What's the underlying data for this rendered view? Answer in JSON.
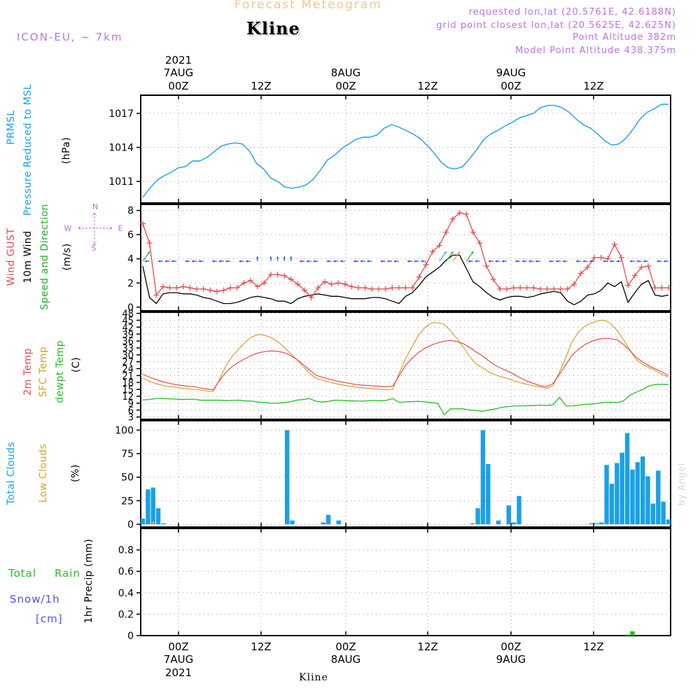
{
  "header": {
    "title": "Forecast Meteogram",
    "station": "Kline",
    "model": "ICON-EU, ~ 7km",
    "requested": "requested lon,lat (20.5761E, 42.6188N)",
    "grid_point": "grid point closest lon,lat (20.5625E, 42.625N)",
    "point_altitude": "Point Altitude 382m",
    "model_altitude": "Model Point Altitude 438.375m"
  },
  "colors": {
    "pressure": "#1aa0e6",
    "gust": "#e84a4a",
    "wind": "#000000",
    "direction": "#20b020",
    "temp2m": "#e84a4a",
    "sfc": "#d6a030",
    "dewpt": "#20c020",
    "total_clouds": "#1aa0e6",
    "low_clouds": "#d6a030",
    "rain": "#20c020",
    "snow": "#5050f0",
    "label_purple": "#c070e0"
  },
  "time_axis": {
    "top_ticks": [
      "00Z",
      "12Z",
      "00Z",
      "12Z",
      "00Z",
      "12Z"
    ],
    "top_dates": [
      "7AUG",
      "8AUG",
      "9AUG"
    ],
    "top_year": "2021",
    "bottom_ticks": [
      "00Z",
      "12Z",
      "00Z",
      "12Z",
      "00Z",
      "12Z"
    ],
    "bottom_dates": [
      "7AUG",
      "8AUG",
      "9AUG"
    ],
    "bottom_year": "2021",
    "footer": "Kline",
    "watermark": "by Angel"
  },
  "chart_data": [
    {
      "type": "line",
      "title": "Pressure Reduced to MSL",
      "series": [
        {
          "name": "PRMSL",
          "values": [
            1009.6,
            1010.4,
            1011.1,
            1011.5,
            1011.8,
            1012.2,
            1012.3,
            1012.8,
            1012.8,
            1013.1,
            1013.6,
            1014.1,
            1014.3,
            1014.4,
            1014.3,
            1013.7,
            1012.6,
            1012.1,
            1011.3,
            1011.0,
            1010.5,
            1010.4,
            1010.5,
            1010.7,
            1011.2,
            1012.0,
            1012.9,
            1013.3,
            1013.9,
            1014.3,
            1014.7,
            1014.9,
            1014.9,
            1015.1,
            1015.7,
            1016.0,
            1015.8,
            1015.5,
            1015.2,
            1014.8,
            1014.2,
            1013.5,
            1012.7,
            1012.2,
            1012.1,
            1012.3,
            1013.0,
            1013.8,
            1014.7,
            1015.2,
            1015.5,
            1015.9,
            1016.2,
            1016.6,
            1016.8,
            1017.0,
            1017.5,
            1017.7,
            1017.7,
            1017.5,
            1017.1,
            1016.5,
            1016.0,
            1015.7,
            1015.2,
            1014.6,
            1014.2,
            1014.3,
            1014.8,
            1015.6,
            1016.5,
            1017.1,
            1017.4,
            1017.8,
            1017.8
          ]
        }
      ],
      "ylabel": "(hPa)",
      "yticks": [
        1011,
        1014,
        1017
      ],
      "ylim": [
        1009.1,
        1018.6
      ],
      "grid": true
    },
    {
      "type": "line",
      "title": "Wind GUST / 10m Wind Speed and Direction",
      "series": [
        {
          "name": "Wind GUST",
          "values": [
            6.9,
            5.3,
            1.0,
            1.7,
            1.6,
            1.6,
            1.7,
            1.6,
            1.5,
            1.5,
            1.4,
            1.3,
            1.4,
            1.6,
            1.6,
            2.0,
            2.2,
            1.7,
            2.0,
            2.7,
            2.7,
            2.6,
            2.3,
            1.9,
            1.4,
            0.8,
            1.6,
            2.1,
            1.9,
            2.0,
            1.9,
            1.7,
            1.6,
            1.6,
            1.5,
            1.5,
            1.5,
            1.6,
            1.6,
            1.6,
            1.6,
            2.5,
            3.5,
            4.6,
            5.1,
            6.2,
            7.3,
            7.8,
            7.7,
            6.2,
            5.3,
            3.4,
            2.3,
            1.5,
            1.5,
            1.6,
            1.6,
            1.6,
            1.6,
            1.5,
            1.5,
            1.5,
            1.5,
            1.5,
            1.9,
            2.8,
            3.3,
            4.1,
            4.1,
            4.0,
            5.2,
            4.1,
            1.8,
            2.6,
            3.3,
            3.4,
            1.6,
            1.6,
            1.6
          ]
        },
        {
          "name": "10m Wind",
          "values": [
            3.4,
            0.8,
            0.3,
            1.1,
            1.2,
            1.2,
            1.1,
            1.1,
            1.0,
            0.8,
            0.7,
            0.5,
            0.3,
            0.3,
            0.4,
            0.6,
            0.8,
            0.9,
            0.8,
            0.7,
            0.5,
            0.5,
            0.3,
            0.7,
            0.9,
            1.0,
            1.1,
            1.0,
            0.9,
            0.9,
            0.8,
            0.7,
            0.7,
            0.7,
            0.8,
            0.8,
            0.7,
            0.5,
            0.3,
            0.9,
            1.2,
            1.8,
            2.5,
            2.9,
            3.3,
            3.9,
            4.3,
            4.3,
            3.2,
            2.1,
            1.7,
            1.2,
            0.8,
            0.6,
            0.8,
            0.9,
            0.9,
            0.8,
            0.9,
            1.1,
            1.2,
            1.3,
            1.2,
            0.5,
            0.2,
            0.5,
            1.0,
            1.1,
            1.4,
            2.0,
            1.7,
            2.1,
            0.4,
            1.2,
            1.9,
            2.2,
            1.0,
            0.9,
            1.0
          ]
        }
      ],
      "ylabel": "(m/s)",
      "yticks": [
        0,
        2,
        4,
        6,
        8
      ],
      "ylim": [
        -0.3,
        8.5
      ],
      "direction_legend": {
        "n": "N",
        "s": "S",
        "w": "W",
        "e": "E"
      },
      "grid": true
    },
    {
      "type": "line",
      "title": "2m Temp / SFC Temp / dewpt Temp",
      "series": [
        {
          "name": "2m Temp",
          "values": [
            21.5,
            20.4,
            19.3,
            18.4,
            17.7,
            17.1,
            16.7,
            16.3,
            16.2,
            15.6,
            15.2,
            14.8,
            19.0,
            22.5,
            25.0,
            26.8,
            28.4,
            29.8,
            30.8,
            31.4,
            31.7,
            31.5,
            31.0,
            29.8,
            28.0,
            25.8,
            23.4,
            21.2,
            20.2,
            19.5,
            18.8,
            18.2,
            17.7,
            17.2,
            16.9,
            16.7,
            16.5,
            16.3,
            16.1,
            16.4,
            21.0,
            25.5,
            28.5,
            31.0,
            32.8,
            34.2,
            35.2,
            35.9,
            36.3,
            35.8,
            34.8,
            33.2,
            31.2,
            29.5,
            27.3,
            25.4,
            24.0,
            22.8,
            21.4,
            19.8,
            18.5,
            17.5,
            16.6,
            16.2,
            17.5,
            21.5,
            25.8,
            30.0,
            32.5,
            34.5,
            35.9,
            36.8,
            37.1,
            37.0,
            36.5,
            34.5,
            31.8,
            28.8,
            26.8,
            25.2,
            23.8,
            22.5,
            21.0
          ]
        },
        {
          "name": "SFC Temp",
          "values": [
            19.9,
            18.5,
            17.5,
            16.8,
            16.2,
            16.0,
            15.5,
            15.3,
            15.0,
            14.7,
            14.3,
            14.0,
            19.5,
            25.5,
            29.5,
            32.6,
            35.5,
            37.8,
            38.8,
            38.5,
            37.5,
            35.8,
            33.5,
            30.7,
            28.0,
            25.0,
            22.0,
            19.8,
            19.0,
            18.2,
            17.5,
            17.0,
            16.5,
            16.0,
            15.7,
            15.5,
            15.2,
            15.0,
            14.8,
            15.2,
            22.0,
            28.5,
            33.5,
            38.5,
            41.8,
            43.8,
            44.0,
            43.2,
            40.5,
            37.0,
            33.2,
            29.2,
            26.0,
            24.3,
            22.6,
            21.3,
            20.4,
            19.6,
            18.6,
            17.8,
            17.1,
            16.5,
            16.0,
            15.5,
            16.6,
            22.5,
            29.0,
            35.8,
            40.0,
            42.5,
            43.8,
            44.8,
            45.0,
            43.5,
            40.5,
            36.5,
            32.0,
            27.8,
            25.8,
            24.4,
            23.0,
            21.5,
            20.3
          ]
        },
        {
          "name": "dewpt Temp",
          "values": [
            10.4,
            10.6,
            11.0,
            11.1,
            10.9,
            10.8,
            10.6,
            10.7,
            10.7,
            10.3,
            10.3,
            10.3,
            10.3,
            10.1,
            10.2,
            10.3,
            10.0,
            9.9,
            9.5,
            9.3,
            9.0,
            9.0,
            9.2,
            9.6,
            10.3,
            10.6,
            11.0,
            9.8,
            9.5,
            9.8,
            10.3,
            10.2,
            10.0,
            10.0,
            9.9,
            10.0,
            10.2,
            10.0,
            10.2,
            11.0,
            9.3,
            9.6,
            9.7,
            9.8,
            9.6,
            9.2,
            9.0,
            4.0,
            6.5,
            6.6,
            6.5,
            6.0,
            5.8,
            5.5,
            6.0,
            6.5,
            7.2,
            7.5,
            7.8,
            7.8,
            7.9,
            8.0,
            8.1,
            8.0,
            8.3,
            11.5,
            7.8,
            7.8,
            8.1,
            8.5,
            8.6,
            9.0,
            9.3,
            9.4,
            9.3,
            10.0,
            12.5,
            13.8,
            15.0,
            16.5,
            17.1,
            17.2,
            17.1
          ]
        }
      ],
      "ylabel": "(C)",
      "yticks": [
        3,
        6,
        9,
        12,
        15,
        18,
        21,
        24,
        27,
        30,
        33,
        36,
        39,
        42,
        45,
        48
      ],
      "ylim": [
        2,
        48.5
      ],
      "grid": true
    },
    {
      "type": "bar",
      "title": "Total Clouds / Low Clouds",
      "series": [
        {
          "name": "Total Clouds",
          "values": [
            6,
            37,
            39,
            17,
            1,
            0,
            0,
            0,
            0,
            0,
            0,
            0,
            0,
            0,
            0,
            0,
            0,
            0,
            0,
            0,
            0,
            0,
            0,
            0,
            0,
            0,
            0,
            0,
            100,
            4,
            0,
            0,
            0,
            0,
            0,
            2,
            10,
            0,
            4,
            0,
            0,
            0,
            0,
            0,
            0,
            0,
            0,
            0,
            0,
            0,
            0,
            0,
            0,
            0,
            0,
            0,
            0,
            0,
            0,
            0,
            0,
            0,
            0,
            0,
            1,
            17,
            100,
            64,
            0,
            4,
            0,
            20,
            2,
            30,
            0,
            0,
            0,
            0,
            0,
            0,
            0,
            0,
            0,
            0,
            0,
            0,
            0,
            1,
            1,
            2,
            63,
            43,
            65,
            76,
            97,
            58,
            66,
            72,
            51,
            22,
            57,
            24,
            5
          ]
        },
        {
          "name": "Low Clouds",
          "values": [
            0,
            0,
            3,
            0,
            0,
            0,
            0,
            0,
            0,
            0,
            0,
            0,
            0,
            0,
            0,
            0,
            0,
            0,
            0,
            0,
            0,
            0,
            0,
            0,
            0,
            0,
            0,
            0,
            0,
            0,
            0,
            0,
            0,
            0,
            0,
            0,
            0,
            0,
            0,
            0,
            0,
            0,
            0,
            0,
            0,
            0,
            0,
            0,
            0,
            0,
            0,
            0,
            0,
            0,
            0,
            0,
            0,
            0,
            0,
            0,
            0,
            0,
            0,
            0,
            0,
            0,
            0,
            0,
            0,
            0,
            0,
            0,
            0,
            0,
            0,
            0,
            0,
            0,
            0,
            0,
            0,
            0,
            0,
            0,
            0,
            0,
            0,
            0,
            0,
            0,
            0,
            0,
            0,
            0,
            0,
            0,
            0,
            0,
            0,
            0,
            0,
            0,
            0
          ]
        }
      ],
      "ylabel": "(%)",
      "yticks": [
        0,
        25,
        50,
        75,
        100
      ],
      "ylim": [
        -3,
        110
      ],
      "grid": true
    },
    {
      "type": "bar",
      "title": "1hr Precip",
      "series": [
        {
          "name": "Total Rain",
          "values": [
            0,
            0,
            0,
            0,
            0,
            0,
            0,
            0,
            0,
            0,
            0,
            0,
            0,
            0,
            0,
            0,
            0,
            0,
            0,
            0,
            0,
            0,
            0,
            0,
            0,
            0,
            0,
            0,
            0,
            0,
            0,
            0,
            0,
            0,
            0,
            0,
            0,
            0,
            0,
            0,
            0,
            0,
            0,
            0,
            0,
            0,
            0,
            0,
            0,
            0,
            0,
            0,
            0,
            0,
            0,
            0,
            0,
            0,
            0,
            0,
            0,
            0,
            0,
            0,
            0,
            0,
            0,
            0,
            0,
            0,
            0,
            0,
            0,
            0,
            0,
            0,
            0,
            0,
            0,
            0,
            0,
            0,
            0,
            0,
            0,
            0,
            0,
            0,
            0,
            0,
            0,
            0,
            0,
            0,
            0.01,
            0.04,
            0,
            0,
            0,
            0,
            0,
            0,
            0
          ]
        },
        {
          "name": "Snow/1h",
          "values": [
            0,
            0,
            0,
            0,
            0,
            0,
            0,
            0,
            0,
            0,
            0,
            0,
            0,
            0,
            0,
            0,
            0,
            0,
            0,
            0,
            0,
            0,
            0,
            0,
            0,
            0,
            0,
            0,
            0,
            0,
            0,
            0,
            0,
            0,
            0,
            0,
            0,
            0,
            0,
            0,
            0,
            0,
            0,
            0,
            0,
            0,
            0,
            0,
            0,
            0,
            0,
            0,
            0,
            0,
            0,
            0,
            0,
            0,
            0,
            0,
            0,
            0,
            0,
            0,
            0,
            0,
            0,
            0,
            0,
            0,
            0,
            0,
            0,
            0,
            0,
            0,
            0,
            0,
            0,
            0,
            0,
            0,
            0,
            0,
            0,
            0,
            0,
            0,
            0,
            0,
            0,
            0,
            0,
            0,
            0,
            0,
            0,
            0,
            0,
            0,
            0,
            0,
            0
          ]
        }
      ],
      "ylabel": "1hr Precip (mm)",
      "yticks": [
        0,
        0.2,
        0.4,
        0.6,
        0.8
      ],
      "ylim": [
        0,
        1.0
      ],
      "left_labels": {
        "rain_a": "Total",
        "rain_b": "Rain",
        "snow": "Snow/1h",
        "unit": "[cm]"
      },
      "grid": true
    }
  ]
}
